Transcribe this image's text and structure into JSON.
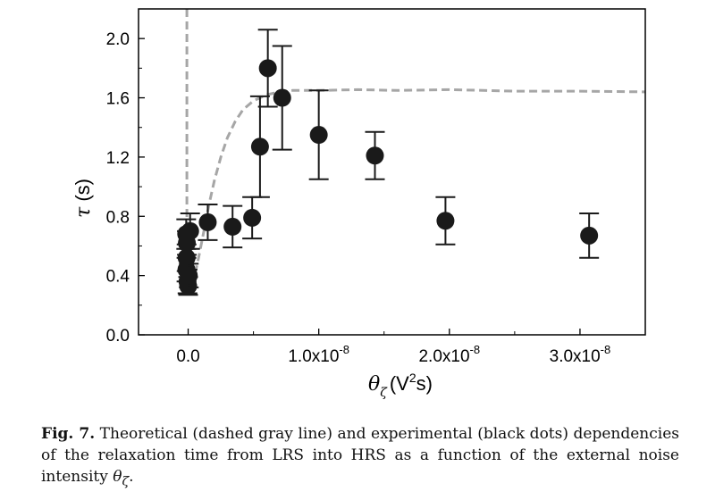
{
  "chart_data": {
    "type": "scatter",
    "xlabel_symbol": "θ",
    "xlabel_subscript": "ζ",
    "xlabel_units": "(V",
    "xlabel_units_sup": "2",
    "xlabel_units_end": "s)",
    "ylabel_symbol": "τ",
    "ylabel_units": " (s)",
    "xlim": [
      -3.8e-09,
      3.5e-08
    ],
    "ylim": [
      0.0,
      2.2
    ],
    "x_ticks": [
      {
        "value": 0,
        "label": "0.0",
        "exp": ""
      },
      {
        "value": 1e-08,
        "label": "1.0x10",
        "exp": "-8"
      },
      {
        "value": 2e-08,
        "label": "2.0x10",
        "exp": "-8"
      },
      {
        "value": 3e-08,
        "label": "3.0x10",
        "exp": "-8"
      }
    ],
    "y_ticks": [
      {
        "value": 0.0,
        "label": "0.0"
      },
      {
        "value": 0.4,
        "label": "0.4"
      },
      {
        "value": 0.8,
        "label": "0.8"
      },
      {
        "value": 1.2,
        "label": "1.2"
      },
      {
        "value": 1.6,
        "label": "1.6"
      },
      {
        "value": 2.0,
        "label": "2.0"
      }
    ],
    "grid": false,
    "series": [
      {
        "type": "scatter-errorbar",
        "color": "#1a1a1a",
        "points": [
          {
            "x": -1.5e-10,
            "y": 0.68,
            "yerr": 0.1
          },
          {
            "x": -1e-10,
            "y": 0.62,
            "yerr": 0.08
          },
          {
            "x": -1.2e-10,
            "y": 0.52,
            "yerr": 0.09
          },
          {
            "x": -1.3e-10,
            "y": 0.44,
            "yerr": 0.08
          },
          {
            "x": -5e-11,
            "y": 0.36,
            "yerr": 0.08
          },
          {
            "x": 0.0,
            "y": 0.33,
            "yerr": 0.06
          },
          {
            "x": 5e-11,
            "y": 0.4,
            "yerr": 0.08
          },
          {
            "x": 1.5e-10,
            "y": 0.7,
            "yerr": 0.12
          },
          {
            "x": 1.5e-09,
            "y": 0.76,
            "yerr": 0.12
          },
          {
            "x": 3.4e-09,
            "y": 0.73,
            "yerr": 0.14
          },
          {
            "x": 4.9e-09,
            "y": 0.79,
            "yerr": 0.14
          },
          {
            "x": 5.5e-09,
            "y": 1.27,
            "yerr": 0.34
          },
          {
            "x": 6.1e-09,
            "y": 1.8,
            "yerr": 0.26
          },
          {
            "x": 7.2e-09,
            "y": 1.6,
            "yerr": 0.35
          },
          {
            "x": 1e-08,
            "y": 1.35,
            "yerr": 0.3
          },
          {
            "x": 1.43e-08,
            "y": 1.21,
            "yerr": 0.16
          },
          {
            "x": 1.97e-08,
            "y": 0.77,
            "yerr": 0.16
          },
          {
            "x": 3.07e-08,
            "y": 0.67,
            "yerr": 0.15
          }
        ]
      },
      {
        "type": "line",
        "style": "dashed",
        "color": "#a6a6a6",
        "x": [
          -1e-10,
          -1e-10,
          0.0,
          1e-10,
          2e-10,
          3e-10,
          5e-10,
          8e-10,
          1.2e-09,
          1.6e-09,
          2e-09,
          2.5e-09,
          3e-09,
          3.6e-09,
          4.2e-09,
          5e-09,
          6e-09,
          7e-09,
          8e-09,
          1e-08,
          1.3e-08,
          1.6e-08,
          2e-08,
          2.5e-08,
          3e-08,
          3.5e-08
        ],
        "y": [
          2.2,
          0.78,
          0.32,
          0.3,
          0.31,
          0.33,
          0.4,
          0.52,
          0.7,
          0.88,
          1.04,
          1.2,
          1.33,
          1.44,
          1.52,
          1.58,
          1.62,
          1.64,
          1.65,
          1.65,
          1.655,
          1.65,
          1.655,
          1.645,
          1.645,
          1.64
        ]
      }
    ]
  },
  "caption": {
    "label": "Fig. 7.",
    "text": " Theoretical (dashed gray line) and experimental (black dots) dependencies of the relaxation time from LRS into HRS as a function of the external noise intensity ",
    "symbol": "θ",
    "symbol_sub": "ζ",
    "end": "."
  }
}
